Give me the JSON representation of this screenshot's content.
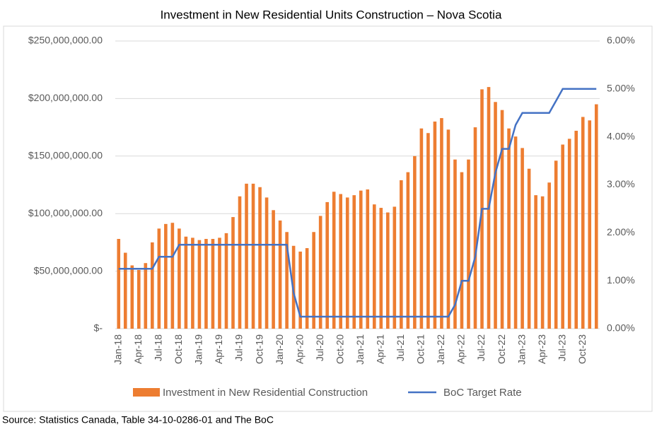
{
  "chart_data": {
    "type": "bar-line",
    "title": "Investment in New Residential Units Construction – Nova Scotia",
    "source": "Source: Statistics Canada, Table 34-10-0286-01 and The BoC",
    "categories": [
      "Jan-18",
      null,
      null,
      "Apr-18",
      null,
      null,
      "Jul-18",
      null,
      null,
      "Oct-18",
      null,
      null,
      "Jan-19",
      null,
      null,
      "Apr-19",
      null,
      null,
      "Jul-19",
      null,
      null,
      "Oct-19",
      null,
      null,
      "Jan-20",
      null,
      null,
      "Apr-20",
      null,
      null,
      "Jul-20",
      null,
      null,
      "Oct-20",
      null,
      null,
      "Jan-21",
      null,
      null,
      "Apr-21",
      null,
      null,
      "Jul-21",
      null,
      null,
      "Oct-21",
      null,
      null,
      "Jan-22",
      null,
      null,
      "Apr-22",
      null,
      null,
      "Jul-22",
      null,
      null,
      "Oct-22",
      null,
      null,
      "Jan-23",
      null,
      null,
      "Apr-23",
      null,
      null,
      "Jul-23",
      null,
      null,
      "Oct-23",
      null,
      null
    ],
    "series": [
      {
        "name": "Investment in New Residential Construction",
        "type": "bar",
        "color": "#ed7d31",
        "values": [
          78000000,
          66000000,
          55000000,
          51000000,
          57000000,
          75000000,
          87000000,
          91000000,
          92000000,
          87000000,
          80000000,
          79000000,
          77000000,
          78000000,
          78000000,
          79000000,
          83000000,
          97000000,
          115000000,
          126000000,
          126000000,
          123000000,
          114000000,
          103000000,
          94000000,
          84000000,
          72000000,
          67000000,
          70000000,
          84000000,
          98000000,
          110000000,
          119000000,
          117000000,
          114000000,
          116000000,
          120000000,
          121000000,
          108000000,
          105000000,
          101000000,
          106000000,
          129000000,
          136000000,
          150000000,
          174000000,
          170000000,
          180000000,
          183000000,
          173000000,
          147000000,
          136000000,
          147000000,
          175000000,
          208000000,
          210000000,
          197000000,
          190000000,
          174000000,
          167000000,
          157000000,
          139000000,
          116000000,
          115000000,
          127000000,
          146000000,
          160000000,
          165000000,
          172000000,
          184000000,
          181000000,
          195000000
        ]
      },
      {
        "name": "BoC Target Rate",
        "type": "line",
        "axis": "y2",
        "color": "#4472c4",
        "values": [
          1.25,
          1.25,
          1.25,
          1.25,
          1.25,
          1.25,
          1.5,
          1.5,
          1.5,
          1.75,
          1.75,
          1.75,
          1.75,
          1.75,
          1.75,
          1.75,
          1.75,
          1.75,
          1.75,
          1.75,
          1.75,
          1.75,
          1.75,
          1.75,
          1.75,
          1.75,
          0.75,
          0.25,
          0.25,
          0.25,
          0.25,
          0.25,
          0.25,
          0.25,
          0.25,
          0.25,
          0.25,
          0.25,
          0.25,
          0.25,
          0.25,
          0.25,
          0.25,
          0.25,
          0.25,
          0.25,
          0.25,
          0.25,
          0.25,
          0.25,
          0.5,
          1.0,
          1.0,
          1.5,
          2.5,
          2.5,
          3.25,
          3.75,
          3.75,
          4.25,
          4.5,
          4.5,
          4.5,
          4.5,
          4.5,
          4.75,
          5.0,
          5.0,
          5.0,
          5.0,
          5.0,
          5.0
        ]
      }
    ],
    "ylim": [
      0,
      250000000
    ],
    "yticks": [
      {
        "value": 0,
        "label": "$-"
      },
      {
        "value": 50000000,
        "label": "$50,000,000.00"
      },
      {
        "value": 100000000,
        "label": "$100,000,000.00"
      },
      {
        "value": 150000000,
        "label": "$150,000,000.00"
      },
      {
        "value": 200000000,
        "label": "$200,000,000.00"
      },
      {
        "value": 250000000,
        "label": "$250,000,000.00"
      }
    ],
    "y2lim": [
      0,
      6
    ],
    "y2ticks": [
      {
        "value": 0,
        "label": "0.00%"
      },
      {
        "value": 1,
        "label": "1.00%"
      },
      {
        "value": 2,
        "label": "2.00%"
      },
      {
        "value": 3,
        "label": "3.00%"
      },
      {
        "value": 4,
        "label": "4.00%"
      },
      {
        "value": 5,
        "label": "5.00%"
      },
      {
        "value": 6,
        "label": "6.00%"
      }
    ],
    "grid": true,
    "legend": "bottom"
  }
}
